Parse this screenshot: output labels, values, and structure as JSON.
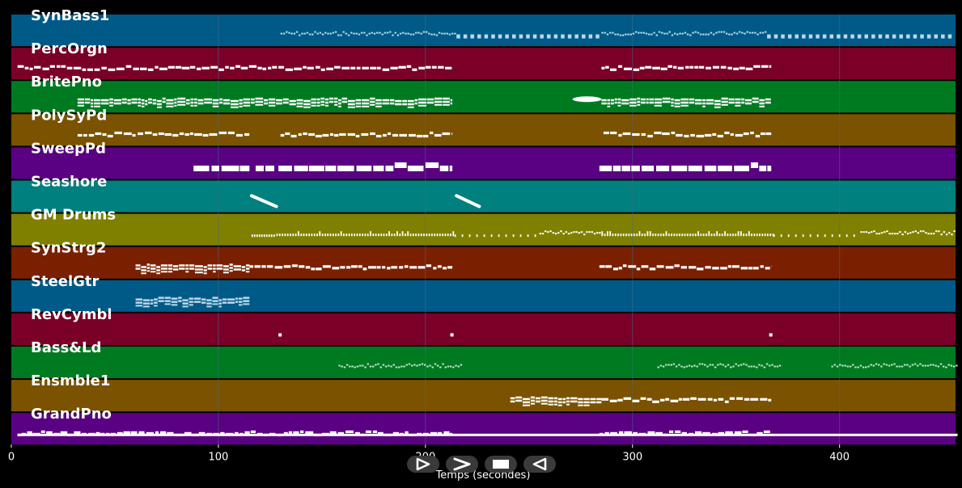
{
  "tracks": [
    {
      "name": "SynBass1",
      "color": "#005a87",
      "note_color": "#bcd8ea",
      "segments": [
        [
          130,
          215,
          "dense"
        ],
        [
          215,
          285,
          "blocks"
        ],
        [
          285,
          365,
          "dense"
        ],
        [
          365,
          455,
          "blocks"
        ]
      ]
    },
    {
      "name": "PercOrgn",
      "color": "#7a0028",
      "note_color": "#ffffff",
      "segments": [
        [
          3,
          213,
          "notes"
        ],
        [
          285,
          367,
          "notes"
        ]
      ]
    },
    {
      "name": "BritePno",
      "color": "#007a20",
      "note_color": "#ffffff",
      "segments": [
        [
          32,
          213,
          "chords"
        ],
        [
          271,
          285,
          "blob"
        ],
        [
          285,
          367,
          "chords"
        ]
      ]
    },
    {
      "name": "PolySyPd",
      "color": "#7a5200",
      "note_color": "#ffffff",
      "segments": [
        [
          32,
          60,
          "notes"
        ],
        [
          61,
          115,
          "notes"
        ],
        [
          130,
          213,
          "notes"
        ],
        [
          286,
          367,
          "notes"
        ]
      ]
    },
    {
      "name": "SweepPd",
      "color": "#5a0082",
      "note_color": "#ffffff",
      "segments": [
        [
          88,
          115,
          "bars"
        ],
        [
          118,
          127,
          "bars"
        ],
        [
          129,
          213,
          "bars"
        ],
        [
          284,
          367,
          "bars"
        ]
      ]
    },
    {
      "name": "Seashore",
      "color": "#00807f",
      "note_color": "#ffffff",
      "segments": [
        [
          116,
          128,
          "sweep"
        ],
        [
          215,
          226,
          "sweep"
        ]
      ]
    },
    {
      "name": "GM Drums",
      "color": "#808000",
      "note_color": "#ffffff",
      "segments": [
        [
          116,
          128,
          "light"
        ],
        [
          128,
          214,
          "drums"
        ],
        [
          214,
          255,
          "sparse"
        ],
        [
          255,
          285,
          "dense"
        ],
        [
          285,
          368,
          "drums"
        ],
        [
          368,
          410,
          "sparse"
        ],
        [
          410,
          457,
          "dense"
        ]
      ]
    },
    {
      "name": "SynStrg2",
      "color": "#7a2000",
      "note_color": "#ffffff",
      "segments": [
        [
          60,
          115,
          "chords"
        ],
        [
          115,
          213,
          "notes"
        ],
        [
          284,
          367,
          "notes"
        ]
      ]
    },
    {
      "name": "SteelGtr",
      "color": "#005a87",
      "note_color": "#bcd8ea",
      "segments": [
        [
          60,
          115,
          "chords"
        ]
      ]
    },
    {
      "name": "RevCymbl",
      "color": "#7a0028",
      "note_color": "#ffffff",
      "segments": [
        [
          129,
          131,
          "dot"
        ],
        [
          212,
          214,
          "dot"
        ],
        [
          366,
          368,
          "dot"
        ]
      ]
    },
    {
      "name": "Bass&Ld",
      "color": "#007a20",
      "note_color": "#bfe6c6",
      "segments": [
        [
          158,
          218,
          "dense"
        ],
        [
          312,
          372,
          "dense"
        ],
        [
          396,
          457,
          "dense"
        ]
      ]
    },
    {
      "name": "Ensmble1",
      "color": "#7a5200",
      "note_color": "#ffffff",
      "segments": [
        [
          241,
          285,
          "chords"
        ],
        [
          285,
          367,
          "notes"
        ]
      ]
    },
    {
      "name": "GrandPno",
      "color": "#5a0082",
      "note_color": "#ffffff",
      "segments": [
        [
          3,
          457,
          "line"
        ],
        [
          3,
          213,
          "notes"
        ],
        [
          284,
          367,
          "notes"
        ]
      ]
    }
  ],
  "x_axis": {
    "label": "Temps (secondes)",
    "min": 0,
    "max": 456,
    "ticks": [
      0,
      100,
      200,
      300,
      400
    ]
  },
  "controls": [
    {
      "name": "play",
      "icon": "play-outline-icon"
    },
    {
      "name": "forward",
      "icon": "chevron-right-icon"
    },
    {
      "name": "stop",
      "icon": "stop-icon"
    },
    {
      "name": "back",
      "icon": "rewind-icon"
    }
  ],
  "colors": {
    "background": "#000000",
    "grid": "#4a6a86",
    "separator": "#000000",
    "text": "#ffffff"
  }
}
